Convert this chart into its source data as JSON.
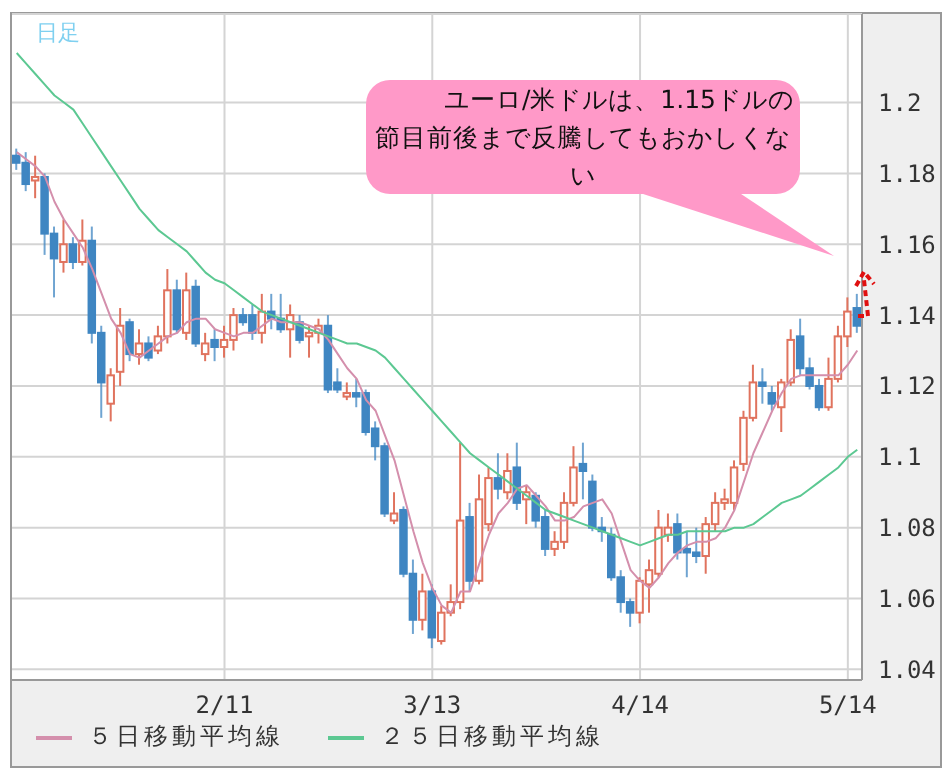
{
  "chart_data": {
    "type": "candlestick",
    "categories": [
      null,
      null,
      null,
      null,
      null,
      null,
      null,
      null,
      null,
      null,
      null,
      null,
      null,
      null,
      null,
      null,
      null,
      null,
      null,
      null,
      null,
      null,
      "2/11",
      null,
      null,
      null,
      null,
      null,
      null,
      null,
      null,
      null,
      null,
      null,
      null,
      null,
      null,
      null,
      null,
      null,
      null,
      null,
      null,
      null,
      "3/13",
      null,
      null,
      null,
      null,
      null,
      null,
      null,
      null,
      null,
      null,
      null,
      null,
      null,
      null,
      null,
      null,
      null,
      null,
      null,
      null,
      null,
      "4/14",
      null,
      null,
      null,
      null,
      null,
      null,
      null,
      null,
      null,
      null,
      null,
      null,
      null,
      null,
      null,
      null,
      null,
      null,
      null,
      null,
      null,
      "5/14",
      null
    ],
    "ohlc": [
      [
        1.185,
        1.187,
        1.181,
        1.183
      ],
      [
        1.183,
        1.186,
        1.175,
        1.177
      ],
      [
        1.178,
        1.185,
        1.173,
        1.179
      ],
      [
        1.179,
        1.18,
        1.157,
        1.163
      ],
      [
        1.163,
        1.165,
        1.145,
        1.156
      ],
      [
        1.155,
        1.167,
        1.152,
        1.16
      ],
      [
        1.16,
        1.162,
        1.153,
        1.155
      ],
      [
        1.155,
        1.167,
        1.154,
        1.161
      ],
      [
        1.161,
        1.165,
        1.132,
        1.135
      ],
      [
        1.135,
        1.137,
        1.111,
        1.121
      ],
      [
        1.115,
        1.125,
        1.11,
        1.123
      ],
      [
        1.124,
        1.142,
        1.12,
        1.137
      ],
      [
        1.138,
        1.139,
        1.127,
        1.129
      ],
      [
        1.129,
        1.136,
        1.126,
        1.132
      ],
      [
        1.132,
        1.134,
        1.127,
        1.128
      ],
      [
        1.13,
        1.137,
        1.129,
        1.134
      ],
      [
        1.134,
        1.153,
        1.132,
        1.147
      ],
      [
        1.147,
        1.15,
        1.135,
        1.136
      ],
      [
        1.135,
        1.152,
        1.133,
        1.147
      ],
      [
        1.148,
        1.15,
        1.131,
        1.132
      ],
      [
        1.129,
        1.135,
        1.127,
        1.132
      ],
      [
        1.133,
        1.136,
        1.127,
        1.131
      ],
      [
        1.131,
        1.137,
        1.128,
        1.133
      ],
      [
        1.133,
        1.142,
        1.13,
        1.14
      ],
      [
        1.14,
        1.142,
        1.137,
        1.138
      ],
      [
        1.14,
        1.143,
        1.133,
        1.135
      ],
      [
        1.135,
        1.146,
        1.132,
        1.141
      ],
      [
        1.141,
        1.146,
        1.136,
        1.139
      ],
      [
        1.139,
        1.146,
        1.135,
        1.136
      ],
      [
        1.136,
        1.143,
        1.128,
        1.14
      ],
      [
        1.138,
        1.14,
        1.132,
        1.133
      ],
      [
        1.134,
        1.137,
        1.128,
        1.135
      ],
      [
        1.135,
        1.139,
        1.132,
        1.137
      ],
      [
        1.137,
        1.14,
        1.118,
        1.119
      ],
      [
        1.121,
        1.125,
        1.118,
        1.119
      ],
      [
        1.117,
        1.121,
        1.116,
        1.118
      ],
      [
        1.118,
        1.122,
        1.114,
        1.117
      ],
      [
        1.118,
        1.119,
        1.106,
        1.107
      ],
      [
        1.108,
        1.11,
        1.099,
        1.103
      ],
      [
        1.103,
        1.104,
        1.083,
        1.084
      ],
      [
        1.082,
        1.09,
        1.081,
        1.084
      ],
      [
        1.085,
        1.086,
        1.066,
        1.067
      ],
      [
        1.067,
        1.071,
        1.05,
        1.054
      ],
      [
        1.054,
        1.067,
        1.051,
        1.062
      ],
      [
        1.062,
        1.064,
        1.046,
        1.049
      ],
      [
        1.048,
        1.058,
        1.047,
        1.056
      ],
      [
        1.056,
        1.064,
        1.055,
        1.059
      ],
      [
        1.059,
        1.104,
        1.057,
        1.082
      ],
      [
        1.083,
        1.087,
        1.062,
        1.065
      ],
      [
        1.065,
        1.095,
        1.064,
        1.088
      ],
      [
        1.081,
        1.097,
        1.079,
        1.094
      ],
      [
        1.094,
        1.101,
        1.088,
        1.091
      ],
      [
        1.09,
        1.101,
        1.088,
        1.096
      ],
      [
        1.097,
        1.104,
        1.085,
        1.087
      ],
      [
        1.088,
        1.092,
        1.081,
        1.09
      ],
      [
        1.089,
        1.09,
        1.08,
        1.082
      ],
      [
        1.083,
        1.085,
        1.072,
        1.074
      ],
      [
        1.074,
        1.079,
        1.072,
        1.076
      ],
      [
        1.076,
        1.09,
        1.074,
        1.087
      ],
      [
        1.087,
        1.103,
        1.086,
        1.097
      ],
      [
        1.098,
        1.104,
        1.088,
        1.096
      ],
      [
        1.093,
        1.095,
        1.079,
        1.08
      ],
      [
        1.08,
        1.083,
        1.076,
        1.079
      ],
      [
        1.078,
        1.08,
        1.065,
        1.066
      ],
      [
        1.066,
        1.068,
        1.056,
        1.059
      ],
      [
        1.059,
        1.06,
        1.052,
        1.056
      ],
      [
        1.056,
        1.066,
        1.053,
        1.065
      ],
      [
        1.064,
        1.071,
        1.056,
        1.068
      ],
      [
        1.067,
        1.085,
        1.066,
        1.08
      ],
      [
        1.078,
        1.084,
        1.076,
        1.08
      ],
      [
        1.081,
        1.084,
        1.071,
        1.073
      ],
      [
        1.074,
        1.079,
        1.066,
        1.073
      ],
      [
        1.073,
        1.08,
        1.07,
        1.072
      ],
      [
        1.072,
        1.083,
        1.067,
        1.081
      ],
      [
        1.081,
        1.09,
        1.079,
        1.087
      ],
      [
        1.087,
        1.091,
        1.085,
        1.088
      ],
      [
        1.087,
        1.099,
        1.085,
        1.097
      ],
      [
        1.098,
        1.113,
        1.096,
        1.111
      ],
      [
        1.111,
        1.126,
        1.11,
        1.121
      ],
      [
        1.121,
        1.125,
        1.115,
        1.12
      ],
      [
        1.118,
        1.12,
        1.113,
        1.115
      ],
      [
        1.114,
        1.122,
        1.107,
        1.121
      ],
      [
        1.121,
        1.136,
        1.12,
        1.133
      ],
      [
        1.134,
        1.139,
        1.123,
        1.125
      ],
      [
        1.125,
        1.128,
        1.119,
        1.12
      ],
      [
        1.12,
        1.122,
        1.113,
        1.114
      ],
      [
        1.114,
        1.128,
        1.113,
        1.122
      ],
      [
        1.122,
        1.137,
        1.121,
        1.134
      ],
      [
        1.134,
        1.145,
        1.131,
        1.141
      ],
      [
        1.142,
        1.146,
        1.135,
        1.137
      ]
    ],
    "series": [
      {
        "type": "line",
        "name": "５日移動平均線",
        "color": "#d48fac",
        "values": [
          1.186,
          1.184,
          1.182,
          1.179,
          1.172,
          1.167,
          1.163,
          1.159,
          1.153,
          1.146,
          1.139,
          1.135,
          1.129,
          1.128,
          1.13,
          1.132,
          1.134,
          1.135,
          1.138,
          1.139,
          1.139,
          1.136,
          1.135,
          1.134,
          1.135,
          1.135,
          1.137,
          1.139,
          1.138,
          1.138,
          1.138,
          1.137,
          1.136,
          1.133,
          1.129,
          1.125,
          1.122,
          1.116,
          1.113,
          1.106,
          1.099,
          1.089,
          1.079,
          1.07,
          1.063,
          1.058,
          1.056,
          1.062,
          1.062,
          1.07,
          1.078,
          1.084,
          1.087,
          1.091,
          1.092,
          1.089,
          1.086,
          1.082,
          1.082,
          1.083,
          1.086,
          1.087,
          1.088,
          1.084,
          1.076,
          1.068,
          1.065,
          1.063,
          1.066,
          1.07,
          1.073,
          1.075,
          1.076,
          1.076,
          1.077,
          1.08,
          1.085,
          1.093,
          1.101,
          1.107,
          1.113,
          1.118,
          1.122,
          1.123,
          1.123,
          1.123,
          1.123,
          1.123,
          1.126,
          1.13
        ]
      },
      {
        "type": "line",
        "name": "２５日移動平均線",
        "color": "#5cc892",
        "values": [
          1.214,
          1.211,
          1.208,
          1.205,
          1.202,
          1.2,
          1.198,
          1.194,
          1.19,
          1.186,
          1.182,
          1.178,
          1.174,
          1.17,
          1.167,
          1.164,
          1.162,
          1.16,
          1.158,
          1.155,
          1.152,
          1.15,
          1.149,
          1.147,
          1.145,
          1.143,
          1.141,
          1.14,
          1.139,
          1.138,
          1.137,
          1.136,
          1.135,
          1.134,
          1.133,
          1.132,
          1.132,
          1.131,
          1.13,
          1.128,
          1.125,
          1.122,
          1.119,
          1.116,
          1.113,
          1.11,
          1.107,
          1.104,
          1.101,
          1.099,
          1.097,
          1.095,
          1.093,
          1.091,
          1.089,
          1.087,
          1.085,
          1.084,
          1.083,
          1.082,
          1.081,
          1.08,
          1.079,
          1.078,
          1.077,
          1.076,
          1.075,
          1.076,
          1.077,
          1.078,
          1.078,
          1.079,
          1.079,
          1.079,
          1.079,
          1.079,
          1.08,
          1.08,
          1.081,
          1.083,
          1.085,
          1.087,
          1.088,
          1.089,
          1.091,
          1.093,
          1.095,
          1.097,
          1.1,
          1.102
        ]
      }
    ],
    "ylim": [
      1.037,
      1.225
    ],
    "yticks": [
      1.04,
      1.06,
      1.08,
      1.1,
      1.12,
      1.14,
      1.16,
      1.18,
      1.2
    ],
    "grid": true,
    "legend": "bottom",
    "marker": "none",
    "annotations": [
      "日足",
      "ユーロ/米ドルは、1.15ドルの節目前後まで反騰してもおかしくない"
    ]
  }
}
